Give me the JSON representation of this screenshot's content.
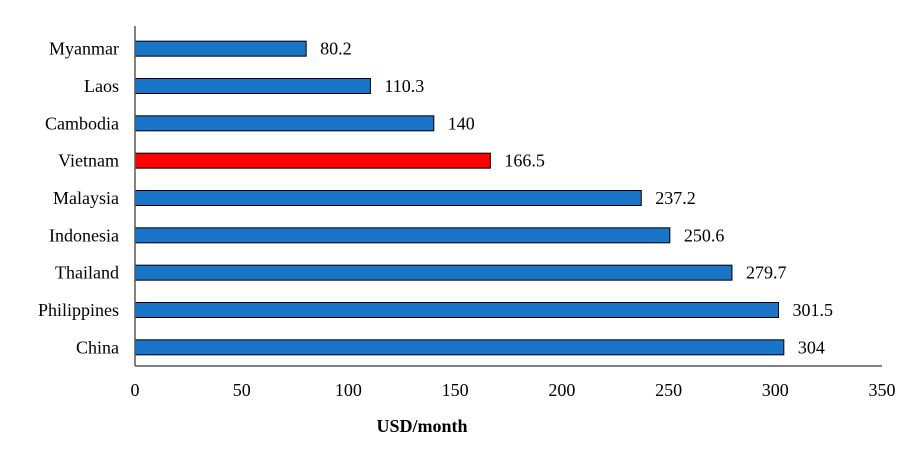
{
  "chart_data": {
    "type": "bar",
    "orientation": "horizontal",
    "categories": [
      "Myanmar",
      "Laos",
      "Cambodia",
      "Vietnam",
      "Malaysia",
      "Indonesia",
      "Thailand",
      "Philippines",
      "China"
    ],
    "values": [
      80.2,
      110.3,
      140,
      166.5,
      237.2,
      250.6,
      279.7,
      301.5,
      304
    ],
    "value_labels": [
      "80.2",
      "110.3",
      "140",
      "166.5",
      "237.2",
      "250.6",
      "279.7",
      "301.5",
      "304"
    ],
    "highlight_category": "Vietnam",
    "xlabel": "USD/month",
    "ylabel": "",
    "xlim": [
      0,
      350
    ],
    "xticks": [
      "0",
      "50",
      "100",
      "150",
      "200",
      "250",
      "300",
      "350"
    ],
    "grid": false,
    "legend": "none"
  },
  "colors": {
    "bar": "#1a74c8",
    "highlight": "#ff0000",
    "bar_stroke": "#000000",
    "axis": "#595959"
  }
}
